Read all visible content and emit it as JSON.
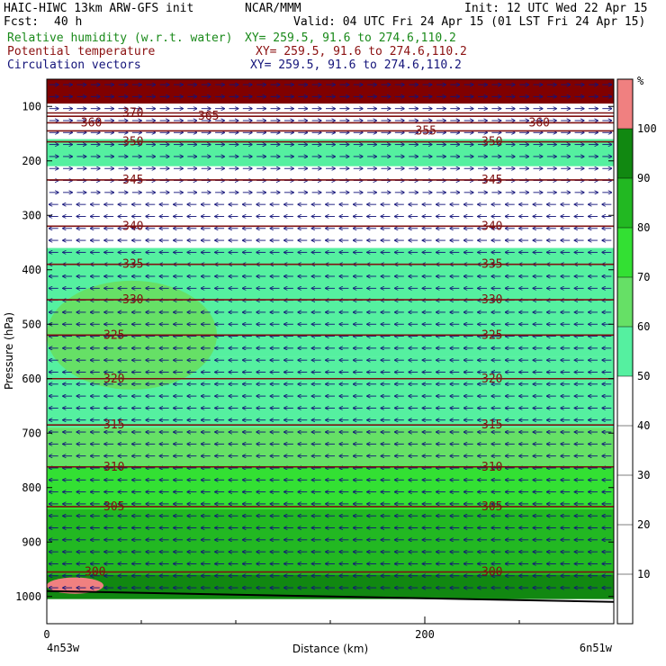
{
  "header": {
    "left_title": "HAIC-HIWC 13km ARW-GFS init",
    "org": "NCAR/MMM",
    "init": "Init: 12 UTC Wed 22 Apr 15",
    "fcst_label": "Fcst:",
    "fcst_value": "40 h",
    "valid": "Valid: 04 UTC Fri 24 Apr 15 (01 LST Fri 24 Apr 15)",
    "fields": [
      {
        "name": "Relative humidity (w.r.t. water)",
        "xy": "XY= 259.5, 91.6 to 274.6,110.2",
        "color": "#1a8a1a"
      },
      {
        "name": "Potential temperature",
        "xy": "XY= 259.5, 91.6 to 274.6,110.2",
        "color": "#8b1010"
      },
      {
        "name": "Circulation vectors",
        "xy": "XY= 259.5, 91.6 to 274.6,110.2",
        "color": "#14147a"
      }
    ]
  },
  "chart_data": {
    "type": "heatmap",
    "title": "",
    "xlabel": "Distance (km)",
    "ylabel": "Pressure (hPa)",
    "xlim": [
      0,
      300
    ],
    "ylim": [
      1050,
      50
    ],
    "x_ticks": [
      0,
      200
    ],
    "x_minor_ticks": [
      50,
      100,
      150,
      250
    ],
    "y_ticks": [
      100,
      200,
      300,
      400,
      500,
      600,
      700,
      800,
      900,
      1000
    ],
    "x_end_labels": {
      "left": "4n53w",
      "right": "6n51w"
    },
    "colorbar": {
      "unit": "%",
      "ticks": [
        10,
        20,
        30,
        40,
        50,
        60,
        70,
        80,
        90,
        100
      ],
      "levels": [
        {
          "from": 0,
          "to": 50,
          "color": "#ffffff"
        },
        {
          "from": 50,
          "to": 60,
          "color": "#55f0a0"
        },
        {
          "from": 60,
          "to": 70,
          "color": "#66e066"
        },
        {
          "from": 70,
          "to": 80,
          "color": "#33e033"
        },
        {
          "from": 80,
          "to": 90,
          "color": "#22b822"
        },
        {
          "from": 90,
          "to": 100,
          "color": "#118811"
        },
        {
          "from": 100,
          "to": 110,
          "color": "#f08080"
        }
      ]
    },
    "rh_bands": [
      {
        "p_top": 50,
        "p_bot": 95,
        "level": 110,
        "color": "#800000"
      },
      {
        "p_top": 95,
        "p_bot": 160,
        "level": 45,
        "color": "#ffffff"
      },
      {
        "p_top": 160,
        "p_bot": 210,
        "level": 55,
        "color": "#55f0a0"
      },
      {
        "p_top": 210,
        "p_bot": 360,
        "level": 45,
        "color": "#ffffff"
      },
      {
        "p_top": 360,
        "p_bot": 560,
        "level": 55,
        "color": "#55f0a0"
      },
      {
        "p_top": 560,
        "p_bot": 690,
        "level": 55,
        "color": "#55f0a0"
      },
      {
        "p_top": 690,
        "p_bot": 760,
        "level": 65,
        "color": "#66e066"
      },
      {
        "p_top": 760,
        "p_bot": 840,
        "level": 75,
        "color": "#33e033"
      },
      {
        "p_top": 840,
        "p_bot": 960,
        "level": 85,
        "color": "#22b822"
      },
      {
        "p_top": 960,
        "p_bot": 1005,
        "level": 95,
        "color": "#118811"
      },
      {
        "p_top": 1005,
        "p_bot": 1050,
        "level": 45,
        "color": "#ffffff"
      }
    ],
    "rh_patches": [
      {
        "p_top": 280,
        "p_bot": 330,
        "x0": 100,
        "x1": 270,
        "level": 45,
        "color": "#ffffff"
      },
      {
        "p_top": 560,
        "p_bot": 690,
        "x0": 90,
        "x1": 300,
        "level": 55,
        "color": "#55f0a0"
      },
      {
        "p_top": 420,
        "p_bot": 620,
        "x0": 0,
        "x1": 90,
        "level": 65,
        "color": "#66e066"
      },
      {
        "p_top": 965,
        "p_bot": 995,
        "x0": 0,
        "x1": 30,
        "level": 105,
        "color": "#f08080"
      }
    ],
    "theta_contours": [
      {
        "theta": 370,
        "p": 112,
        "label_x": 40,
        "label2_x": null
      },
      {
        "theta": 365,
        "p": 118,
        "label_x": 80,
        "label2_x": null
      },
      {
        "theta": 360,
        "p": 130,
        "label_x": 18,
        "label2_x": 255
      },
      {
        "theta": 355,
        "p": 145,
        "label_x": 195,
        "label2_x": null
      },
      {
        "theta": 350,
        "p": 165,
        "label_x": 40,
        "label2_x": 230
      },
      {
        "theta": 345,
        "p": 235,
        "label_x": 40,
        "label2_x": 230
      },
      {
        "theta": 340,
        "p": 320,
        "label_x": 40,
        "label2_x": 230
      },
      {
        "theta": 335,
        "p": 390,
        "label_x": 40,
        "label2_x": 230
      },
      {
        "theta": 330,
        "p": 455,
        "label_x": 40,
        "label2_x": 230
      },
      {
        "theta": 325,
        "p": 520,
        "label_x": 30,
        "label2_x": 230
      },
      {
        "theta": 320,
        "p": 600,
        "label_x": 30,
        "label2_x": 230
      },
      {
        "theta": 315,
        "p": 685,
        "label_x": 30,
        "label2_x": 230
      },
      {
        "theta": 310,
        "p": 762,
        "label_x": 30,
        "label2_x": 230
      },
      {
        "theta": 305,
        "p": 835,
        "label_x": 30,
        "label2_x": 230
      },
      {
        "theta": 300,
        "p": 955,
        "label_x": 20,
        "label2_x": 230
      }
    ],
    "vectors": {
      "columns": 41,
      "upper_layer": {
        "p_min": 60,
        "p_max": 260,
        "direction": "east"
      },
      "lower_layer": {
        "p_min": 280,
        "p_max": 1000,
        "direction": "west"
      },
      "color": "#14147a"
    },
    "surface": {
      "p_left": 990,
      "p_right": 1010,
      "color": "#000000"
    },
    "legend": "none"
  }
}
